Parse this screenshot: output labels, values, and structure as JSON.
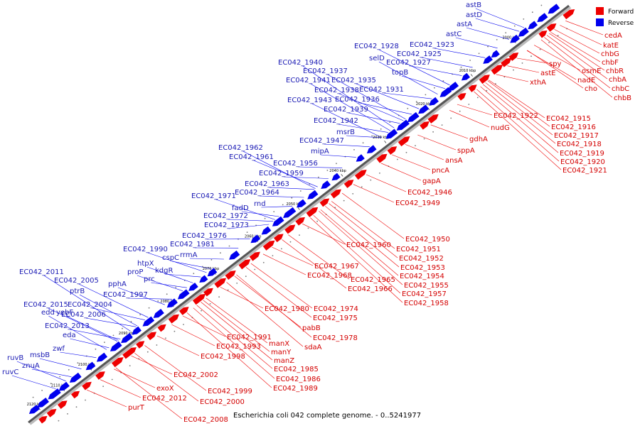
{
  "caption": "Escherichia coli 042 complete genome. - 0..5241977",
  "legend": [
    {
      "label": "Forward",
      "color": "#ee0000"
    },
    {
      "label": "Reverse",
      "color": "#0000ee"
    }
  ],
  "ticks": [
    "2000 kbp",
    "2010 kbp",
    "2020 kbp",
    "2030 kbp",
    "2040 kbp",
    "2050 kbp",
    "2060 kbp",
    "2070 kbp",
    "2080 kbp",
    "2090 kbp",
    "2100 kbp",
    "2110 kbp",
    "2120 kbp"
  ],
  "forward_labels": [
    "cedA",
    "katE",
    "chbG",
    "chbF",
    "chbR",
    "chbA",
    "chbC",
    "chbB",
    "osmE",
    "nadE",
    "cho",
    "spy",
    "astE",
    "xthA",
    "EC042_1922",
    "EC042_1915",
    "EC042_1916",
    "EC042_1917",
    "EC042_1918",
    "EC042_1919",
    "EC042_1920",
    "EC042_1921",
    "nudG",
    "gdhA",
    "sppA",
    "ansA",
    "pncA",
    "gapA",
    "EC042_1946",
    "EC042_1949",
    "EC042_1950",
    "EC042_1951",
    "EC042_1952",
    "EC042_1953",
    "EC042_1954",
    "EC042_1955",
    "EC042_1957",
    "EC042_1958",
    "EC042_1960",
    "EC042_1967",
    "EC042_1968",
    "EC042_1965",
    "EC042_1966",
    "EC042_1974",
    "EC042_1975",
    "EC042_1980",
    "pabB",
    "EC042_1978",
    "sdaA",
    "EC042_1991",
    "manX",
    "EC042_1993",
    "manY",
    "manZ",
    "EC042_1998",
    "EC042_1985",
    "EC042_1986",
    "EC042_1989",
    "EC042_2002",
    "EC042_1999",
    "EC042_2000",
    "exoX",
    "EC042_2012",
    "purT",
    "EC042_2008"
  ],
  "reverse_labels": [
    "astB",
    "astD",
    "astA",
    "astC",
    "EC042_1923",
    "EC042_1928",
    "EC042_1925",
    "selD",
    "EC042_1927",
    "topB",
    "EC042_1940",
    "EC042_1937",
    "EC042_1941",
    "EC042_1935",
    "EC042_1938",
    "EC042_1931",
    "EC042_1943",
    "EC042_1936",
    "EC042_1939",
    "EC042_1942",
    "msrB",
    "EC042_1947",
    "mipA",
    "EC042_1962",
    "EC042_1961",
    "EC042_1956",
    "EC042_1959",
    "EC042_1963",
    "EC042_1971",
    "EC042_1964",
    "rnd",
    "fadD",
    "EC042_1972",
    "EC042_1973",
    "EC042_1976",
    "EC042_1981",
    "EC042_1990",
    "cspC",
    "rrmA",
    "htpX",
    "kdgR",
    "proP",
    "prc",
    "pphA",
    "EC042_2011",
    "EC042_2005",
    "ptrB",
    "EC042_1997",
    "EC042_2004",
    "EC042_2015",
    "edd",
    "yebF",
    "EC042_2006",
    "EC042_2013",
    "eda",
    "msbB",
    "zwf",
    "ruvB",
    "znuA",
    "ruvC"
  ]
}
